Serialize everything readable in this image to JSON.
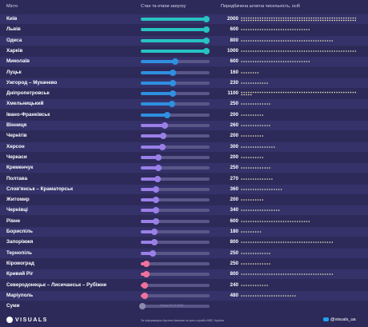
{
  "header": {
    "city_col": "Місто",
    "stage_col": "Стан та етапи запуску",
    "staff_col": "Передбачена штатна чисельність, осіб"
  },
  "colors": {
    "background": "#2d2a59",
    "stage_teal": "#27c2c2",
    "stage_blue": "#2f8fe0",
    "stage_purple": "#9b7fe8",
    "stage_pink": "#f0709c",
    "stage_grey": "#8d8ab0",
    "dot_color": "#f1ecc4"
  },
  "chart_data": {
    "type": "bar",
    "unit_per_dot": 20,
    "cities": [
      "Київ",
      "Львів",
      "Одеса",
      "Харків",
      "Миколаїв",
      "Луцьк",
      "Ужгород – Мукачево",
      "Дніпропетровськ",
      "Хмельницький",
      "Івано-Франківськ",
      "Вінниця",
      "Чернігів",
      "Херсон",
      "Черкаси",
      "Кременчук",
      "Полтава",
      "Слов'янськ – Краматорськ",
      "Житомир",
      "Чернівці",
      "Рівне",
      "Бориспіль",
      "Запоріжжя",
      "Тернопіль",
      "Кіровоград",
      "Кривий Ріг",
      "Северодонецьк – Лисичанськ – Рубіжне",
      "Маріуполь",
      "Суми"
    ],
    "staff": [
      2000,
      600,
      800,
      1000,
      600,
      160,
      230,
      1100,
      250,
      200,
      260,
      200,
      300,
      200,
      250,
      270,
      360,
      200,
      340,
      600,
      180,
      800,
      250,
      250,
      800,
      240,
      480,
      null
    ],
    "stage_progress": [
      0.95,
      0.95,
      0.95,
      0.95,
      0.5,
      0.46,
      0.46,
      0.46,
      0.45,
      0.38,
      0.35,
      0.32,
      0.31,
      0.26,
      0.26,
      0.24,
      0.22,
      0.22,
      0.22,
      0.22,
      0.2,
      0.2,
      0.18,
      0.08,
      0.08,
      0.06,
      0.06,
      0.02
    ],
    "stage_color": [
      "teal",
      "teal",
      "teal",
      "teal",
      "blue",
      "blue",
      "blue",
      "blue",
      "blue",
      "blue",
      "purple",
      "purple",
      "purple",
      "purple",
      "purple",
      "purple",
      "purple",
      "purple",
      "purple",
      "purple",
      "purple",
      "purple",
      "purple",
      "pink",
      "pink",
      "pink",
      "pink",
      "grey"
    ],
    "notes": {
      "27": "Запуск 07.11.2015"
    }
  },
  "footer": {
    "logo": "VISUALS",
    "source": "За інформацією Арсена Авакова та прес-служби МВС України",
    "handle": "@visuals_ua"
  }
}
